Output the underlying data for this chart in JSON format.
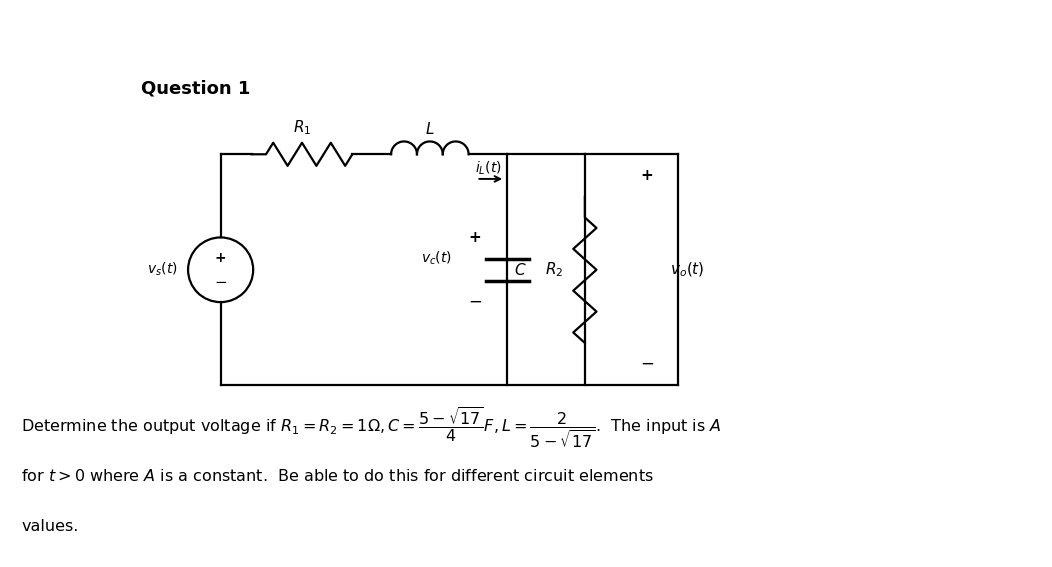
{
  "title": "Question 1",
  "background_color": "#ffffff",
  "fig_width": 10.52,
  "fig_height": 5.67,
  "dpi": 100,
  "lw": 1.6
}
